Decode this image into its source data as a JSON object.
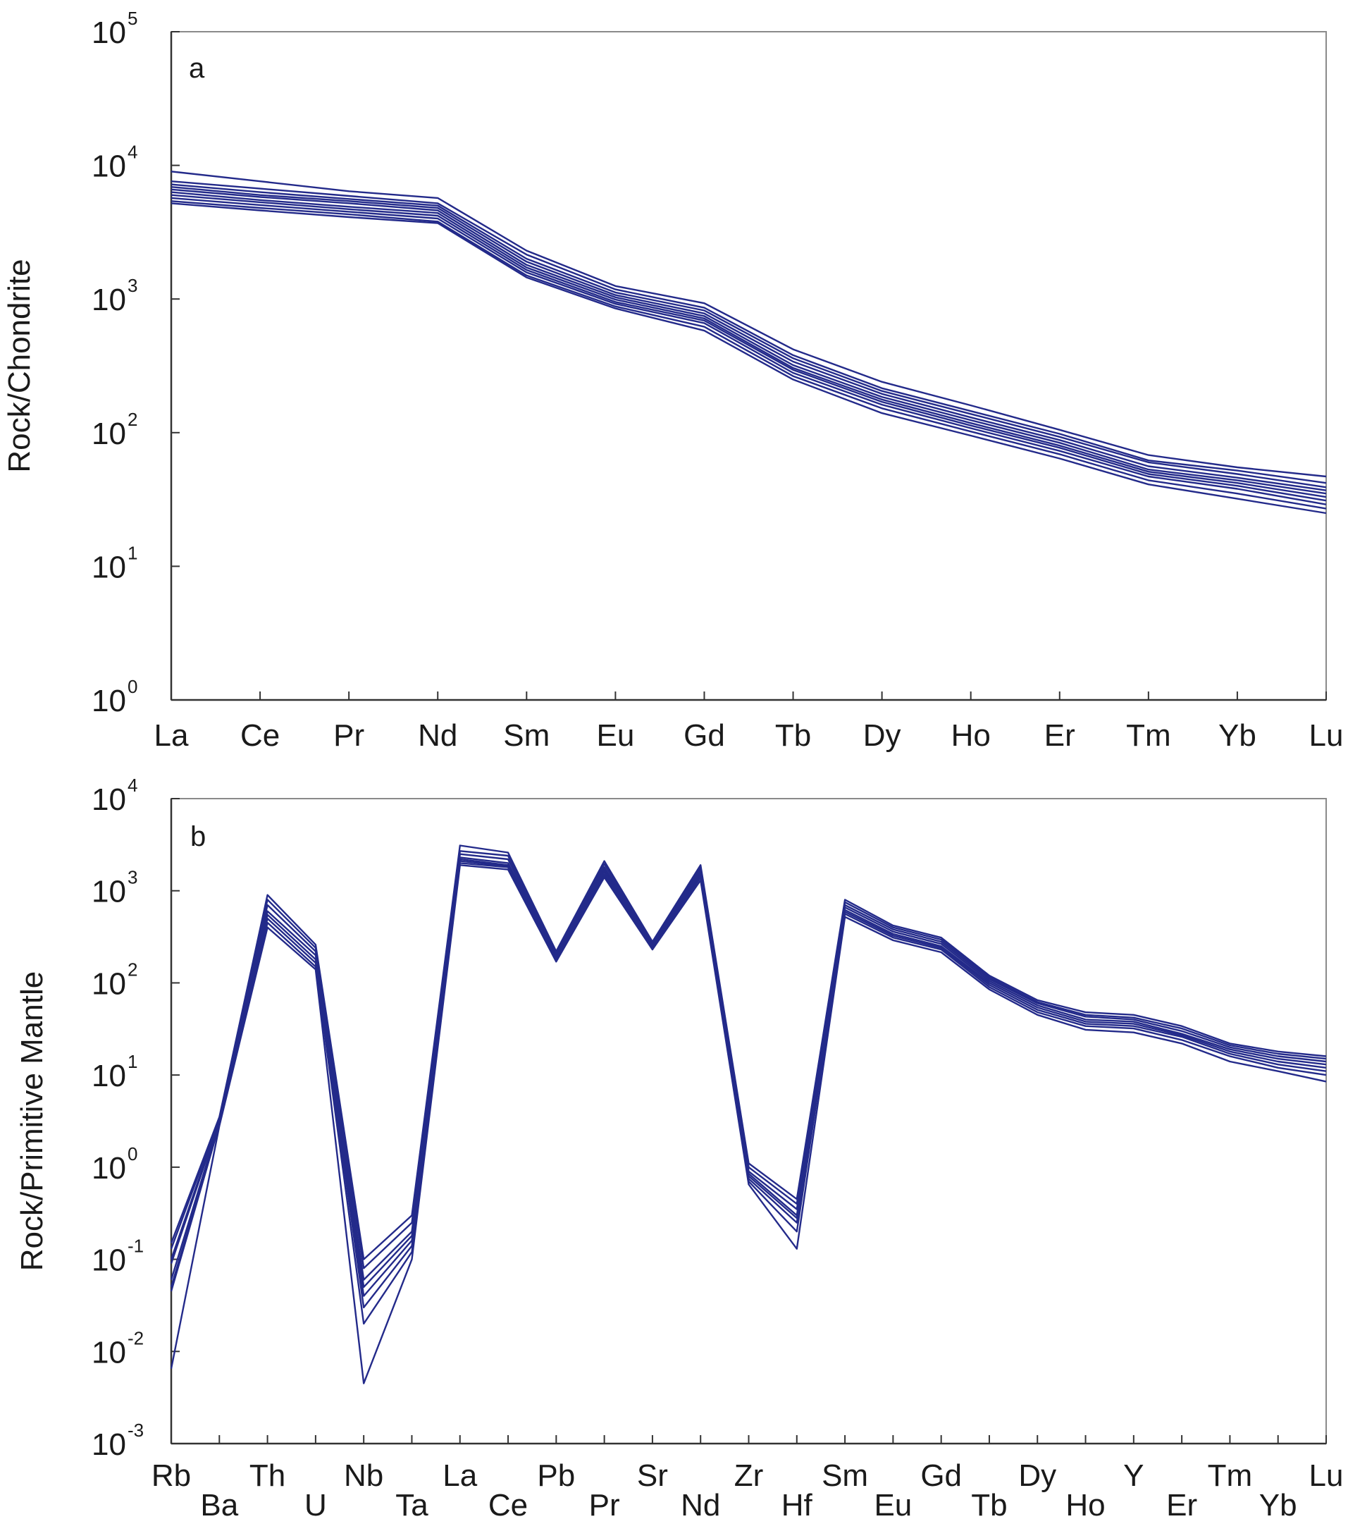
{
  "colors": {
    "series": "#232a8a",
    "frame": "#8a8a8a",
    "text": "#1a1a1a"
  },
  "chart_data": [
    {
      "type": "line",
      "panel_label": "a",
      "ylabel": "Rock/Chondrite",
      "yscale": "log",
      "ylim": [
        1,
        100000
      ],
      "ytick_exponents": [
        0,
        1,
        2,
        3,
        4,
        5
      ],
      "grid": false,
      "categories": [
        "La",
        "Ce",
        "Pr",
        "Nd",
        "Sm",
        "Eu",
        "Gd",
        "Tb",
        "Dy",
        "Ho",
        "Er",
        "Tm",
        "Yb",
        "Lu"
      ],
      "series": [
        {
          "values": [
            9000,
            7600,
            6400,
            5700,
            2300,
            1250,
            930,
            420,
            240,
            160,
            105,
            68,
            55,
            47
          ]
        },
        {
          "values": [
            7600,
            6700,
            5900,
            5200,
            2150,
            1180,
            860,
            380,
            215,
            145,
            98,
            62,
            52,
            42
          ]
        },
        {
          "values": [
            7200,
            6300,
            5600,
            5000,
            2000,
            1120,
            820,
            360,
            205,
            138,
            93,
            60,
            49,
            39
          ]
        },
        {
          "values": [
            6900,
            6000,
            5400,
            4800,
            1900,
            1070,
            780,
            340,
            195,
            130,
            88,
            56,
            46,
            37
          ]
        },
        {
          "values": [
            6600,
            5800,
            5200,
            4600,
            1800,
            1030,
            745,
            320,
            185,
            124,
            84,
            53,
            44,
            35
          ]
        },
        {
          "values": [
            6300,
            5500,
            4900,
            4400,
            1720,
            990,
            715,
            305,
            177,
            118,
            80,
            51,
            42,
            33
          ]
        },
        {
          "values": [
            6000,
            5300,
            4700,
            4200,
            1650,
            950,
            690,
            295,
            170,
            113,
            77,
            49,
            40,
            31
          ]
        },
        {
          "values": [
            5700,
            5050,
            4500,
            4000,
            1580,
            920,
            660,
            280,
            162,
            108,
            73,
            47,
            38,
            29
          ]
        },
        {
          "values": [
            5400,
            4800,
            4300,
            3800,
            1500,
            880,
            620,
            265,
            152,
            102,
            69,
            44,
            35,
            27
          ]
        },
        {
          "values": [
            5200,
            4600,
            4100,
            3700,
            1450,
            850,
            580,
            250,
            140,
            95,
            64,
            41,
            32,
            25
          ]
        }
      ]
    },
    {
      "type": "line",
      "panel_label": "b",
      "ylabel": "Rock/Primitive Mantle",
      "yscale": "log",
      "ylim": [
        0.001,
        10000
      ],
      "ytick_exponents": [
        -3,
        -2,
        -1,
        0,
        1,
        2,
        3,
        4
      ],
      "grid": false,
      "categories": [
        "Rb",
        "Ba",
        "Th",
        "U",
        "Nb",
        "Ta",
        "La",
        "Ce",
        "Pb",
        "Pr",
        "Sr",
        "Nd",
        "Zr",
        "Hf",
        "Sm",
        "Eu",
        "Gd",
        "Tb",
        "Dy",
        "Ho",
        "Y",
        "Er",
        "Tm",
        "Yb",
        "Lu"
      ],
      "series": [
        {
          "values": [
            0.15,
            3.5,
            900,
            260,
            0.1,
            0.3,
            3100,
            2600,
            220,
            2100,
            280,
            1900,
            1.1,
            0.45,
            800,
            420,
            310,
            120,
            65,
            48,
            45,
            34,
            22,
            18,
            16
          ]
        },
        {
          "values": [
            0.13,
            3.4,
            800,
            240,
            0.08,
            0.25,
            2700,
            2400,
            210,
            1950,
            270,
            1800,
            1.0,
            0.4,
            750,
            400,
            295,
            115,
            62,
            45,
            42,
            32,
            21,
            17,
            15
          ]
        },
        {
          "values": [
            0.1,
            3.3,
            700,
            220,
            0.06,
            0.2,
            2500,
            2200,
            200,
            1800,
            260,
            1700,
            0.9,
            0.35,
            700,
            380,
            280,
            110,
            60,
            43,
            40,
            30,
            20,
            16,
            14
          ]
        },
        {
          "values": [
            0.09,
            3.2,
            600,
            200,
            0.05,
            0.18,
            2300,
            2000,
            195,
            1700,
            255,
            1600,
            0.85,
            0.3,
            660,
            360,
            265,
            105,
            57,
            40,
            38,
            28,
            19,
            15,
            13
          ]
        },
        {
          "values": [
            0.06,
            3.1,
            550,
            180,
            0.04,
            0.16,
            2200,
            1900,
            190,
            1600,
            250,
            1500,
            0.8,
            0.28,
            620,
            340,
            250,
            100,
            54,
            38,
            36,
            27,
            18,
            14,
            12
          ]
        },
        {
          "values": [
            0.05,
            3.0,
            500,
            165,
            0.03,
            0.14,
            2100,
            1850,
            185,
            1500,
            240,
            1450,
            0.75,
            0.25,
            590,
            325,
            240,
            95,
            51,
            36,
            34,
            26,
            17,
            13,
            11
          ]
        },
        {
          "values": [
            0.045,
            2.9,
            450,
            150,
            0.02,
            0.12,
            2000,
            1800,
            180,
            1450,
            235,
            1400,
            0.7,
            0.2,
            560,
            310,
            230,
            90,
            48,
            34,
            32,
            24,
            16,
            12,
            10
          ]
        },
        {
          "values": [
            0.0065,
            2.8,
            400,
            140,
            0.0045,
            0.1,
            1900,
            1700,
            170,
            1400,
            230,
            1300,
            0.65,
            0.13,
            520,
            290,
            215,
            85,
            45,
            31,
            29,
            22,
            14,
            11,
            8.5
          ]
        }
      ]
    }
  ]
}
